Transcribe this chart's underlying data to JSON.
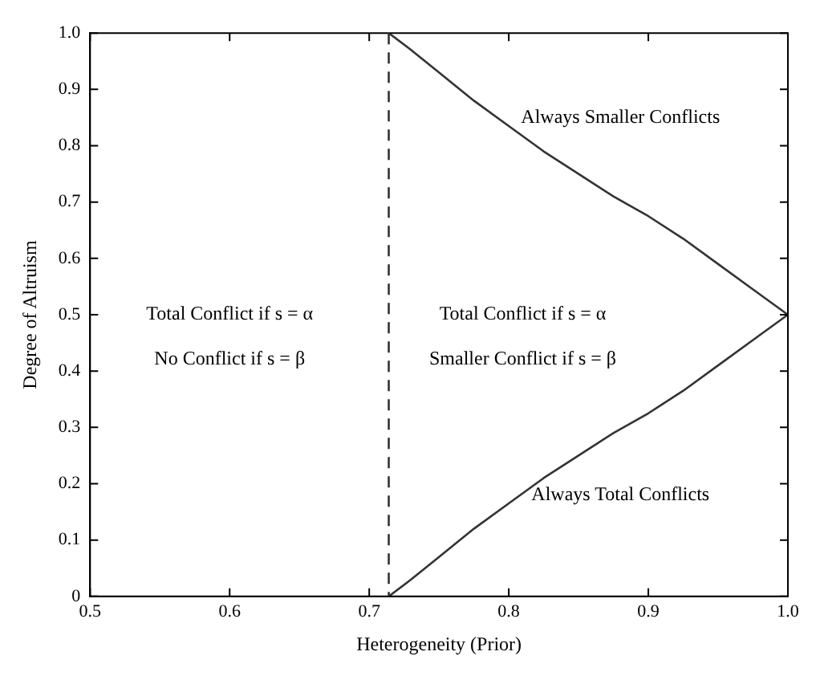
{
  "chart_data": {
    "type": "line",
    "xlabel": "Heterogeneity (Prior)",
    "ylabel": "Degree of Altruism",
    "x": [
      0.714,
      0.73,
      0.75,
      0.775,
      0.8,
      0.825,
      0.85,
      0.875,
      0.9,
      0.925,
      0.95,
      0.975,
      1.0
    ],
    "series": [
      {
        "color": "#333333",
        "values": [
          1.0,
          0.97,
          0.93,
          0.88,
          0.835,
          0.79,
          0.75,
          0.71,
          0.675,
          0.635,
          0.59,
          0.545,
          0.5
        ]
      },
      {
        "color": "#333333",
        "values": [
          0.0,
          0.03,
          0.07,
          0.12,
          0.165,
          0.21,
          0.25,
          0.29,
          0.325,
          0.365,
          0.41,
          0.455,
          0.5
        ]
      }
    ],
    "xlim": [
      0.5,
      1.0
    ],
    "xticks": [
      0.5,
      0.6,
      0.7,
      0.8,
      0.9,
      {
        "value": 1.0,
        "label": "1.0"
      }
    ],
    "ylim": [
      0,
      1.0
    ],
    "yticks": [
      0,
      0.1,
      0.2,
      0.3,
      0.4,
      0.5,
      0.6,
      0.7,
      0.8,
      0.9,
      {
        "value": 1.0,
        "label": "1.0"
      }
    ],
    "ref_lines": [
      {
        "axis": "x",
        "value": 0.714,
        "color": "#333333",
        "line_style": "dashed"
      }
    ],
    "annotations": [
      "Always Smaller Conflicts",
      "Total Conflict if s = α",
      "No Conflict if s = β",
      "Total Conflict if s = α",
      "Smaller Conflict if s = β",
      "Always Total Conflicts"
    ],
    "grid": false,
    "legend": false,
    "marker": "none",
    "line_style": "solid"
  }
}
